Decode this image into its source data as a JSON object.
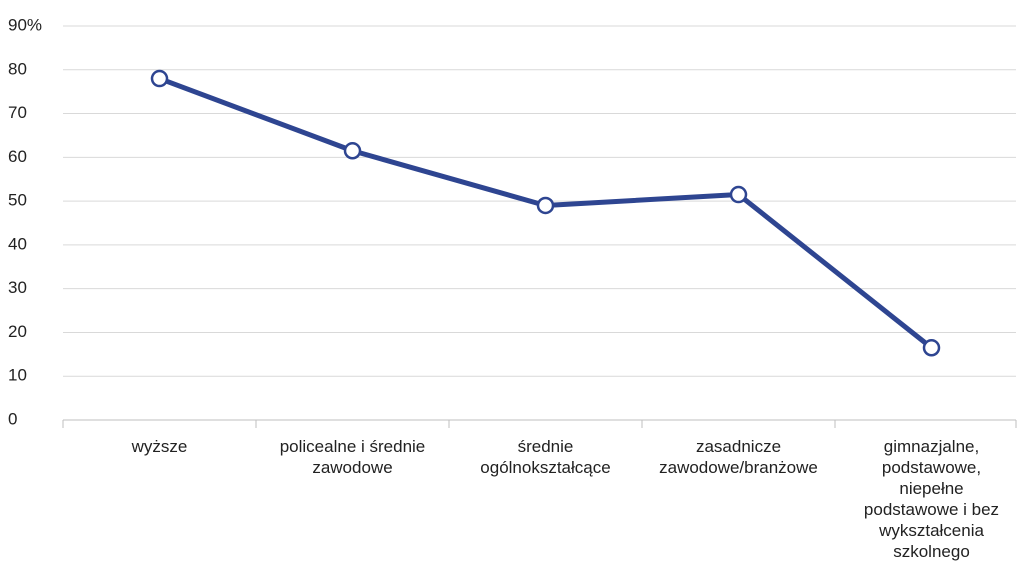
{
  "chart_data": {
    "type": "line",
    "categories": [
      "wyższe",
      "policealne i średnie zawodowe",
      "średnie ogólnokształcące",
      "zasadnicze zawodowe/branżowe",
      "gimnazjalne, podstawowe, niepełne podstawowe i bez wykształcenia szkolnego"
    ],
    "series": [
      {
        "color": "#2e4591",
        "values": [
          78,
          61.5,
          49,
          51.5,
          16.5
        ]
      }
    ],
    "ylim": [
      0,
      90
    ],
    "yticks": [
      0,
      10,
      20,
      30,
      40,
      50,
      60,
      70,
      80,
      {
        "value": 90,
        "label": "90%"
      }
    ],
    "grid": true
  }
}
